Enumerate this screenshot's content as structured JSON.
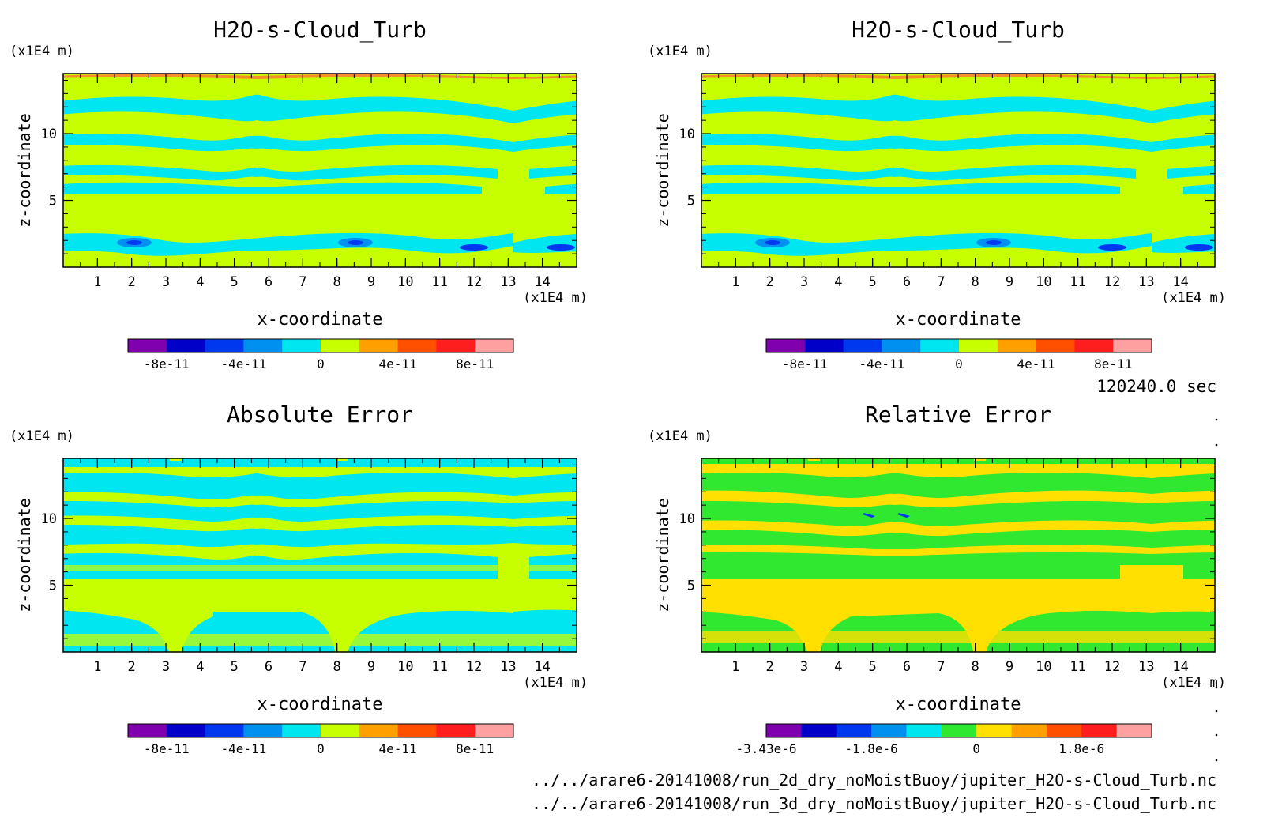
{
  "chart_data": [
    {
      "type": "heatmap",
      "title": "H2O-s-Cloud_Turb",
      "xlabel": "x-coordinate",
      "ylabel": "z-coordinate",
      "x_unit": "(x1E4 m)",
      "y_unit": "(x1E4 m)",
      "xlim": [
        0,
        15
      ],
      "ylim": [
        0,
        14.5
      ],
      "x_ticks": [
        1,
        2,
        3,
        4,
        5,
        6,
        7,
        8,
        9,
        10,
        11,
        12,
        13,
        14
      ],
      "y_ticks": [
        5,
        10
      ],
      "colorbar": {
        "colors": [
          "#8000b0",
          "#0000c8",
          "#0038f0",
          "#0090f0",
          "#00e6f0",
          "#c8ff00",
          "#ffa000",
          "#ff5000",
          "#ff1e1e",
          "#ffa0a0"
        ],
        "tick_labels": [
          "-8e-11",
          "-4e-11",
          "0",
          "4e-11",
          "8e-11"
        ]
      }
    },
    {
      "type": "heatmap",
      "title": "H2O-s-Cloud_Turb",
      "xlabel": "x-coordinate",
      "ylabel": "z-coordinate",
      "x_unit": "(x1E4 m)",
      "y_unit": "(x1E4 m)",
      "xlim": [
        0,
        15
      ],
      "ylim": [
        0,
        14.5
      ],
      "x_ticks": [
        1,
        2,
        3,
        4,
        5,
        6,
        7,
        8,
        9,
        10,
        11,
        12,
        13,
        14
      ],
      "y_ticks": [
        5,
        10
      ],
      "colorbar": {
        "colors": [
          "#8000b0",
          "#0000c8",
          "#0038f0",
          "#0090f0",
          "#00e6f0",
          "#c8ff00",
          "#ffa000",
          "#ff5000",
          "#ff1e1e",
          "#ffa0a0"
        ],
        "tick_labels": [
          "-8e-11",
          "-4e-11",
          "0",
          "4e-11",
          "8e-11"
        ]
      }
    },
    {
      "type": "heatmap",
      "title": "Absolute Error",
      "xlabel": "x-coordinate",
      "ylabel": "z-coordinate",
      "x_unit": "(x1E4 m)",
      "y_unit": "(x1E4 m)",
      "xlim": [
        0,
        15
      ],
      "ylim": [
        0,
        14.5
      ],
      "x_ticks": [
        1,
        2,
        3,
        4,
        5,
        6,
        7,
        8,
        9,
        10,
        11,
        12,
        13,
        14
      ],
      "y_ticks": [
        5,
        10
      ],
      "colorbar": {
        "colors": [
          "#8000b0",
          "#0000c8",
          "#0038f0",
          "#0090f0",
          "#00e6f0",
          "#c8ff00",
          "#ffa000",
          "#ff5000",
          "#ff1e1e",
          "#ffa0a0"
        ],
        "tick_labels": [
          "-8e-11",
          "-4e-11",
          "0",
          "4e-11",
          "8e-11"
        ]
      }
    },
    {
      "type": "heatmap",
      "title": "Relative Error",
      "xlabel": "x-coordinate",
      "ylabel": "z-coordinate",
      "x_unit": "(x1E4 m)",
      "y_unit": "(x1E4 m)",
      "xlim": [
        0,
        15
      ],
      "ylim": [
        0,
        14.5
      ],
      "x_ticks": [
        1,
        2,
        3,
        4,
        5,
        6,
        7,
        8,
        9,
        10,
        11,
        12,
        13,
        14
      ],
      "y_ticks": [
        5,
        10
      ],
      "colorbar": {
        "colors": [
          "#8000b0",
          "#0000c8",
          "#0038f0",
          "#0090f0",
          "#00e6f0",
          "#30e830",
          "#ffe000",
          "#ffa000",
          "#ff5000",
          "#ff1e1e",
          "#ffa0a0"
        ],
        "tick_labels": [
          "-3.43e-6",
          "-1.8e-6",
          "0",
          "1.8e-6"
        ]
      }
    }
  ],
  "time_label": "120240.0 sec",
  "file_paths": [
    "../../arare6-20141008/run_2d_dry_noMoistBuoy/jupiter_H2O-s-Cloud_Turb.nc",
    "../../arare6-20141008/run_3d_dry_noMoistBuoy/jupiter_H2O-s-Cloud_Turb.nc"
  ]
}
